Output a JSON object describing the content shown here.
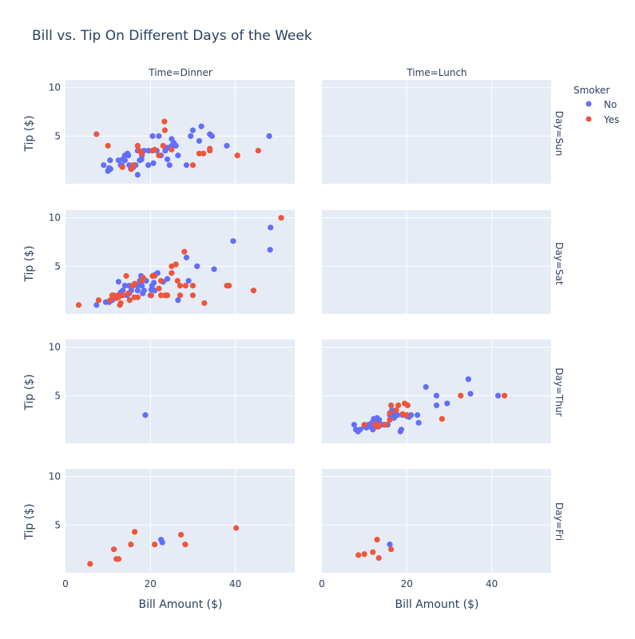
{
  "chart_data": {
    "type": "scatter",
    "title": "Bill vs. Tip On Different Days of the Week",
    "xlabel": "Bill Amount ($)",
    "ylabel": "Tip ($)",
    "xlim": [
      0,
      54
    ],
    "ylim": [
      0,
      10.8
    ],
    "xticks": [
      0,
      20,
      40
    ],
    "yticks": [
      5,
      10
    ],
    "columns": [
      "Time=Dinner",
      "Time=Lunch"
    ],
    "rows": [
      "Day=Sun",
      "Day=Sat",
      "Day=Thur",
      "Day=Fri"
    ],
    "legend": {
      "title": "Smoker",
      "entries": [
        "No",
        "Yes"
      ],
      "position": "top-right"
    },
    "colors": {
      "No": "#636efa",
      "Yes": "#ef553b",
      "panel_bg": "#e5ecf6",
      "grid": "#ffffff",
      "text": "#2a3f5f"
    },
    "panels": [
      {
        "row": "Day=Sun",
        "col": "Time=Dinner",
        "No": [
          [
            9,
            2
          ],
          [
            10,
            1.4
          ],
          [
            10.3,
            1.7
          ],
          [
            10.6,
            1.6
          ],
          [
            10.5,
            2.5
          ],
          [
            12.5,
            2.5
          ],
          [
            13,
            2
          ],
          [
            13.5,
            2.6
          ],
          [
            13.3,
            2
          ],
          [
            14,
            2.5
          ],
          [
            14,
            3
          ],
          [
            14.6,
            3.2
          ],
          [
            14.8,
            3
          ],
          [
            15,
            2
          ],
          [
            15.4,
            1.6
          ],
          [
            16,
            1.8
          ],
          [
            16.5,
            2
          ],
          [
            17,
            3.5
          ],
          [
            17,
            1
          ],
          [
            17.5,
            2.5
          ],
          [
            17.9,
            2.6
          ],
          [
            18,
            3
          ],
          [
            18.5,
            3.5
          ],
          [
            19.5,
            2
          ],
          [
            19.6,
            3.5
          ],
          [
            20.5,
            5
          ],
          [
            20.7,
            2.2
          ],
          [
            21.5,
            3.5
          ],
          [
            22,
            5
          ],
          [
            22.5,
            3
          ],
          [
            23.5,
            3.5
          ],
          [
            24,
            2.6
          ],
          [
            24,
            3.8
          ],
          [
            24.5,
            2
          ],
          [
            25,
            4.7
          ],
          [
            25,
            4
          ],
          [
            25.5,
            4.3
          ],
          [
            26,
            4
          ],
          [
            26.5,
            3
          ],
          [
            28.5,
            2
          ],
          [
            29.5,
            5
          ],
          [
            30,
            5.6
          ],
          [
            31.5,
            4.5
          ],
          [
            32,
            6
          ],
          [
            34,
            5.2
          ],
          [
            34.5,
            5
          ],
          [
            38,
            4
          ],
          [
            48,
            5
          ]
        ],
        "Yes": [
          [
            7.3,
            5.2
          ],
          [
            10,
            4
          ],
          [
            13.4,
            1.8
          ],
          [
            15.5,
            1.6
          ],
          [
            16,
            2
          ],
          [
            17,
            4
          ],
          [
            17.4,
            3.5
          ],
          [
            18,
            3.2
          ],
          [
            20.5,
            3.5
          ],
          [
            21,
            3.6
          ],
          [
            22,
            3
          ],
          [
            23,
            4
          ],
          [
            23.3,
            6.5
          ],
          [
            23.4,
            5.6
          ],
          [
            25,
            3.6
          ],
          [
            30,
            2
          ],
          [
            31.5,
            3.2
          ],
          [
            32.5,
            3.2
          ],
          [
            34,
            3.5
          ],
          [
            34,
            3.7
          ],
          [
            40.5,
            3
          ],
          [
            45.4,
            3.5
          ]
        ]
      },
      {
        "row": "Day=Sat",
        "col": "Time=Dinner",
        "No": [
          [
            7.3,
            1
          ],
          [
            9.5,
            1.3
          ],
          [
            10.3,
            1.3
          ],
          [
            10.6,
            1.5
          ],
          [
            11,
            1.5
          ],
          [
            11.5,
            1.8
          ],
          [
            12.5,
            3.4
          ],
          [
            13,
            2.3
          ],
          [
            13.5,
            2.5
          ],
          [
            14,
            3
          ],
          [
            14.5,
            2
          ],
          [
            15,
            2.2
          ],
          [
            15,
            3
          ],
          [
            15.5,
            2.5
          ],
          [
            16,
            3
          ],
          [
            17,
            2.5
          ],
          [
            17,
            3
          ],
          [
            17.5,
            3.5
          ],
          [
            17.8,
            4
          ],
          [
            18,
            3
          ],
          [
            18.2,
            2.2
          ],
          [
            18.5,
            2.5
          ],
          [
            19,
            3.5
          ],
          [
            20,
            2
          ],
          [
            20.2,
            2.6
          ],
          [
            20.4,
            3
          ],
          [
            20.8,
            3.3
          ],
          [
            21,
            4.1
          ],
          [
            21,
            2.5
          ],
          [
            21.7,
            4.3
          ],
          [
            23,
            3.4
          ],
          [
            24,
            3.7
          ],
          [
            26.5,
            1.5
          ],
          [
            28.5,
            5.9
          ],
          [
            29,
            3.5
          ],
          [
            31,
            5
          ],
          [
            35,
            4.7
          ],
          [
            39.5,
            7.6
          ],
          [
            48.2,
            6.7
          ],
          [
            48.3,
            9
          ]
        ],
        "Yes": [
          [
            3.1,
            1
          ],
          [
            7.8,
            1.5
          ],
          [
            10.5,
            1.5
          ],
          [
            11,
            2
          ],
          [
            11.3,
            2
          ],
          [
            12,
            1.7
          ],
          [
            12.3,
            2
          ],
          [
            12.5,
            1.8
          ],
          [
            12.8,
            1
          ],
          [
            13,
            1.2
          ],
          [
            13.5,
            2
          ],
          [
            14.3,
            4
          ],
          [
            14.8,
            2.2
          ],
          [
            15.1,
            1.5
          ],
          [
            15.8,
            3
          ],
          [
            16.2,
            1.8
          ],
          [
            16.3,
            3.2
          ],
          [
            17,
            1.8
          ],
          [
            18,
            3.5
          ],
          [
            18.3,
            3.8
          ],
          [
            20.2,
            2
          ],
          [
            20.5,
            4
          ],
          [
            21,
            4
          ],
          [
            22,
            2.7
          ],
          [
            22.5,
            3.5
          ],
          [
            22.5,
            2
          ],
          [
            23.5,
            2
          ],
          [
            24,
            2
          ],
          [
            25,
            4.3
          ],
          [
            25,
            5
          ],
          [
            26,
            5.2
          ],
          [
            26.4,
            3.5
          ],
          [
            27,
            2
          ],
          [
            27,
            3
          ],
          [
            28,
            6.5
          ],
          [
            28.3,
            3
          ],
          [
            30,
            3
          ],
          [
            30,
            2
          ],
          [
            32.7,
            1.2
          ],
          [
            38,
            3
          ],
          [
            38.5,
            3
          ],
          [
            44.3,
            2.5
          ],
          [
            50.8,
            10
          ]
        ]
      },
      {
        "row": "Day=Thur",
        "col": "Time=Dinner",
        "No": [
          [
            18.8,
            3
          ]
        ],
        "Yes": []
      },
      {
        "row": "Day=Thur",
        "col": "Time=Lunch",
        "No": [
          [
            7.6,
            2
          ],
          [
            8,
            1.5
          ],
          [
            8.5,
            1.3
          ],
          [
            9,
            1.5
          ],
          [
            10,
            1.8
          ],
          [
            10.5,
            1.7
          ],
          [
            11,
            2
          ],
          [
            11.5,
            1.8
          ],
          [
            11.8,
            2.2
          ],
          [
            12,
            1.5
          ],
          [
            12.2,
            2.6
          ],
          [
            12.5,
            2
          ],
          [
            12.7,
            1.8
          ],
          [
            13,
            2.7
          ],
          [
            13,
            2.2
          ],
          [
            13.3,
            1.8
          ],
          [
            13.5,
            2.5
          ],
          [
            14,
            2
          ],
          [
            14.5,
            2
          ],
          [
            15,
            2
          ],
          [
            15.5,
            2
          ],
          [
            16,
            3
          ],
          [
            16.5,
            3.5
          ],
          [
            16.8,
            3.2
          ],
          [
            17,
            2.7
          ],
          [
            17.8,
            3
          ],
          [
            18.5,
            1.3
          ],
          [
            18.7,
            1.5
          ],
          [
            19,
            3
          ],
          [
            20,
            2.9
          ],
          [
            20.5,
            2.8
          ],
          [
            21,
            3
          ],
          [
            22.5,
            3
          ],
          [
            22.8,
            2.2
          ],
          [
            24.5,
            5.9
          ],
          [
            27,
            5
          ],
          [
            27,
            4
          ],
          [
            29.5,
            4.2
          ],
          [
            34.5,
            6.7
          ],
          [
            35,
            5.2
          ],
          [
            41.5,
            5
          ]
        ],
        "Yes": [
          [
            10,
            2
          ],
          [
            12.5,
            2
          ],
          [
            13,
            1.8
          ],
          [
            13.5,
            2
          ],
          [
            15,
            2
          ],
          [
            16,
            3.2
          ],
          [
            16,
            2.5
          ],
          [
            16.3,
            4
          ],
          [
            17.5,
            3.5
          ],
          [
            18,
            4
          ],
          [
            19,
            3.1
          ],
          [
            19.5,
            4.2
          ],
          [
            20,
            3
          ],
          [
            20.2,
            4
          ],
          [
            28.3,
            2.6
          ],
          [
            32.7,
            5
          ],
          [
            43,
            5
          ]
        ]
      },
      {
        "row": "Day=Fri",
        "col": "Time=Dinner",
        "No": [
          [
            22.5,
            3.5
          ],
          [
            22.8,
            3.2
          ]
        ],
        "Yes": [
          [
            5.8,
            1
          ],
          [
            11.4,
            2.5
          ],
          [
            12,
            1.5
          ],
          [
            12.5,
            1.5
          ],
          [
            15.4,
            3
          ],
          [
            16.3,
            4.3
          ],
          [
            21,
            3
          ],
          [
            27.2,
            4
          ],
          [
            28.2,
            3
          ],
          [
            40.2,
            4.7
          ]
        ]
      },
      {
        "row": "Day=Fri",
        "col": "Time=Lunch",
        "No": [
          [
            16,
            3
          ]
        ],
        "Yes": [
          [
            8.6,
            1.9
          ],
          [
            10,
            2
          ],
          [
            12,
            2.2
          ],
          [
            13,
            3.5
          ],
          [
            13.4,
            1.6
          ],
          [
            16.3,
            2.5
          ]
        ]
      }
    ]
  }
}
